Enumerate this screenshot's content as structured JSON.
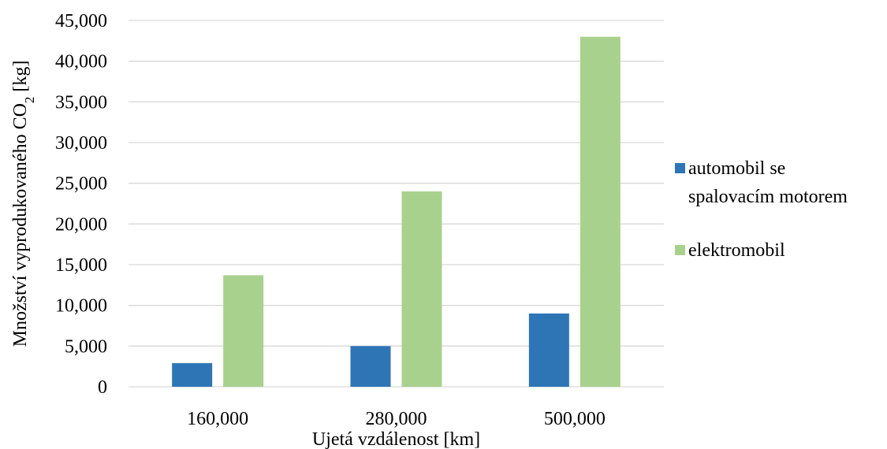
{
  "chart_data": {
    "type": "bar",
    "title": "",
    "xlabel": "Ujetá vzdálenost [km]",
    "ylabel": {
      "prefix": "Množství vyprodukovaného CO",
      "subscript": "2",
      "suffix": " [kg]"
    },
    "categories": [
      "160,000",
      "280,000",
      "500,000"
    ],
    "series": [
      {
        "name": [
          "automobil se",
          "spalovacím motorem"
        ],
        "color": "#2e75b6",
        "values": [
          2900,
          5000,
          9000
        ]
      },
      {
        "name": [
          "elektromobil"
        ],
        "color": "#a9d18e",
        "values": [
          13700,
          24000,
          43000
        ]
      }
    ],
    "ylim": [
      0,
      45000
    ],
    "yticks": [
      {
        "value": 0,
        "label": "0"
      },
      {
        "value": 5000,
        "label": "5,000"
      },
      {
        "value": 10000,
        "label": "10,000"
      },
      {
        "value": 15000,
        "label": "15,000"
      },
      {
        "value": 20000,
        "label": "20,000"
      },
      {
        "value": 25000,
        "label": "25,000"
      },
      {
        "value": 30000,
        "label": "30,000"
      },
      {
        "value": 35000,
        "label": "35,000"
      },
      {
        "value": 40000,
        "label": "40,000"
      },
      {
        "value": 45000,
        "label": "45,000"
      }
    ],
    "grid": true,
    "legend_position": "right",
    "gridline_color": "#d9d9d9"
  }
}
